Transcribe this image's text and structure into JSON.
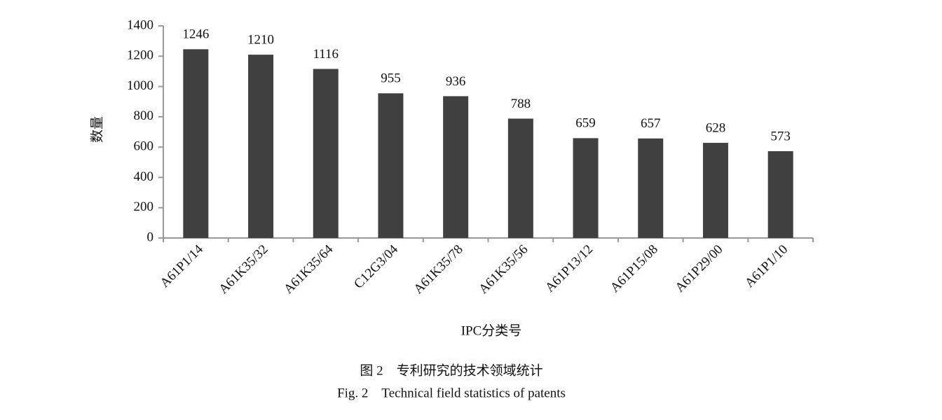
{
  "chart_data": {
    "type": "bar",
    "categories": [
      "A61P1/14",
      "A61K35/32",
      "A61K35/64",
      "C12G3/04",
      "A61K35/78",
      "A61K35/56",
      "A61P13/12",
      "A61P15/08",
      "A61P29/00",
      "A61P1/10"
    ],
    "values": [
      1246,
      1210,
      1116,
      955,
      936,
      788,
      659,
      657,
      628,
      573
    ],
    "color": "#404040",
    "ylim": [
      0,
      1400
    ],
    "yticks": [
      0,
      200,
      400,
      600,
      800,
      1000,
      1200,
      1400
    ],
    "x_label": "IPC分类号",
    "y_label": "数量",
    "caption_cn": "图 2　专利研究的技术领域统计",
    "caption_en": "Fig. 2　Technical field statistics of patents"
  }
}
